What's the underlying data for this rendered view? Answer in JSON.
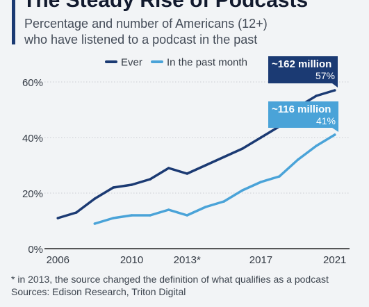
{
  "header": {
    "title": "The Steady Rise of Podcasts",
    "subtitle_line1": "Percentage and number of Americans (12+)",
    "subtitle_line2": "who have listened to a podcast in the past"
  },
  "footer": {
    "note": "* in 2013, the source changed the definition of what qualifies as a podcast",
    "sources": "Sources: Edison Research, Triton Digital"
  },
  "colors": {
    "ever": "#1b3a73",
    "past_month": "#4aa3d8",
    "grid": "#c9cdd2",
    "text": "#333a44"
  },
  "chart_data": {
    "type": "line",
    "title": "The Steady Rise of Podcasts",
    "xlim": [
      2005.5,
      2021.5
    ],
    "ylim": [
      0,
      60
    ],
    "y_ticks": [
      0,
      20,
      40,
      60
    ],
    "y_tick_labels": [
      "0%",
      "20%",
      "40%",
      "60%"
    ],
    "x_ticks": [
      2006,
      2010,
      2013,
      2017,
      2021
    ],
    "x_tick_labels": [
      "2006",
      "2010",
      "2013*",
      "2017",
      "2021"
    ],
    "grid": true,
    "legend_position": "top",
    "series": [
      {
        "name": "Ever",
        "color": "#1b3a73",
        "x": [
          2006,
          2007,
          2008,
          2009,
          2010,
          2011,
          2012,
          2013,
          2014,
          2015,
          2016,
          2017,
          2018,
          2019,
          2020,
          2021
        ],
        "values": [
          11,
          13,
          18,
          22,
          23,
          25,
          29,
          27,
          30,
          33,
          36,
          40,
          44,
          51,
          55,
          57
        ]
      },
      {
        "name": "In the past month",
        "color": "#4aa3d8",
        "x": [
          2008,
          2009,
          2010,
          2011,
          2012,
          2013,
          2014,
          2015,
          2016,
          2017,
          2018,
          2019,
          2020,
          2021
        ],
        "values": [
          9,
          11,
          12,
          12,
          14,
          12,
          15,
          17,
          21,
          24,
          26,
          32,
          37,
          41
        ]
      }
    ],
    "annotations": [
      {
        "series": "Ever",
        "line1": "~162 million",
        "line2": "57%"
      },
      {
        "series": "In the past month",
        "line1": "~116 million",
        "line2": "41%"
      }
    ]
  }
}
